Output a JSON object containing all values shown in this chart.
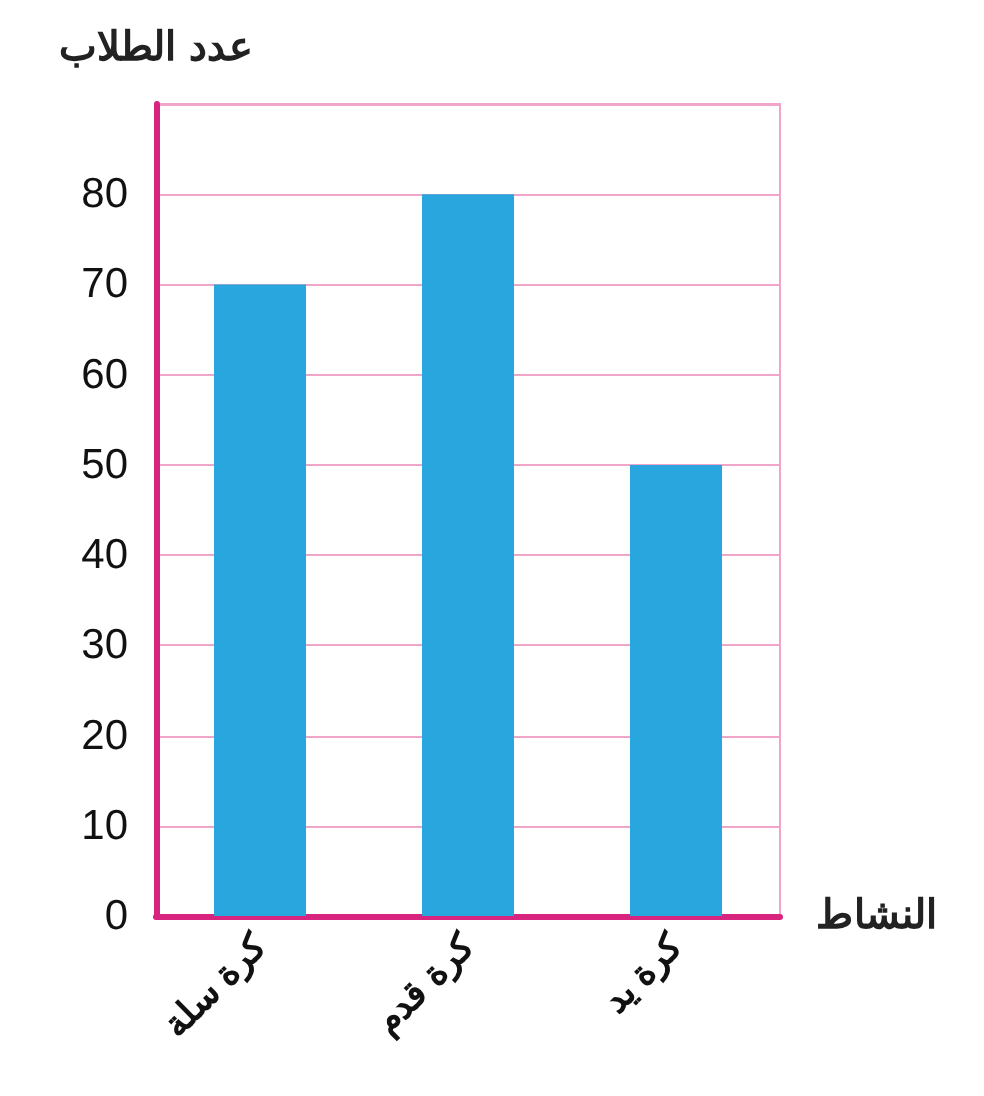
{
  "chart_data": {
    "type": "bar",
    "xlabel": "النشاط",
    "ylabel": "عدد الطلاب",
    "categories": [
      "كرة سلة",
      "كرة قدم",
      "كرة يد"
    ],
    "values": [
      70,
      80,
      50
    ],
    "color": "#29a6de",
    "ylim": [
      0,
      90
    ],
    "yticks": [
      0,
      10,
      20,
      30,
      40,
      50,
      60,
      70,
      80,
      {
        "value": 90,
        "label": null
      }
    ],
    "grid": "y"
  }
}
